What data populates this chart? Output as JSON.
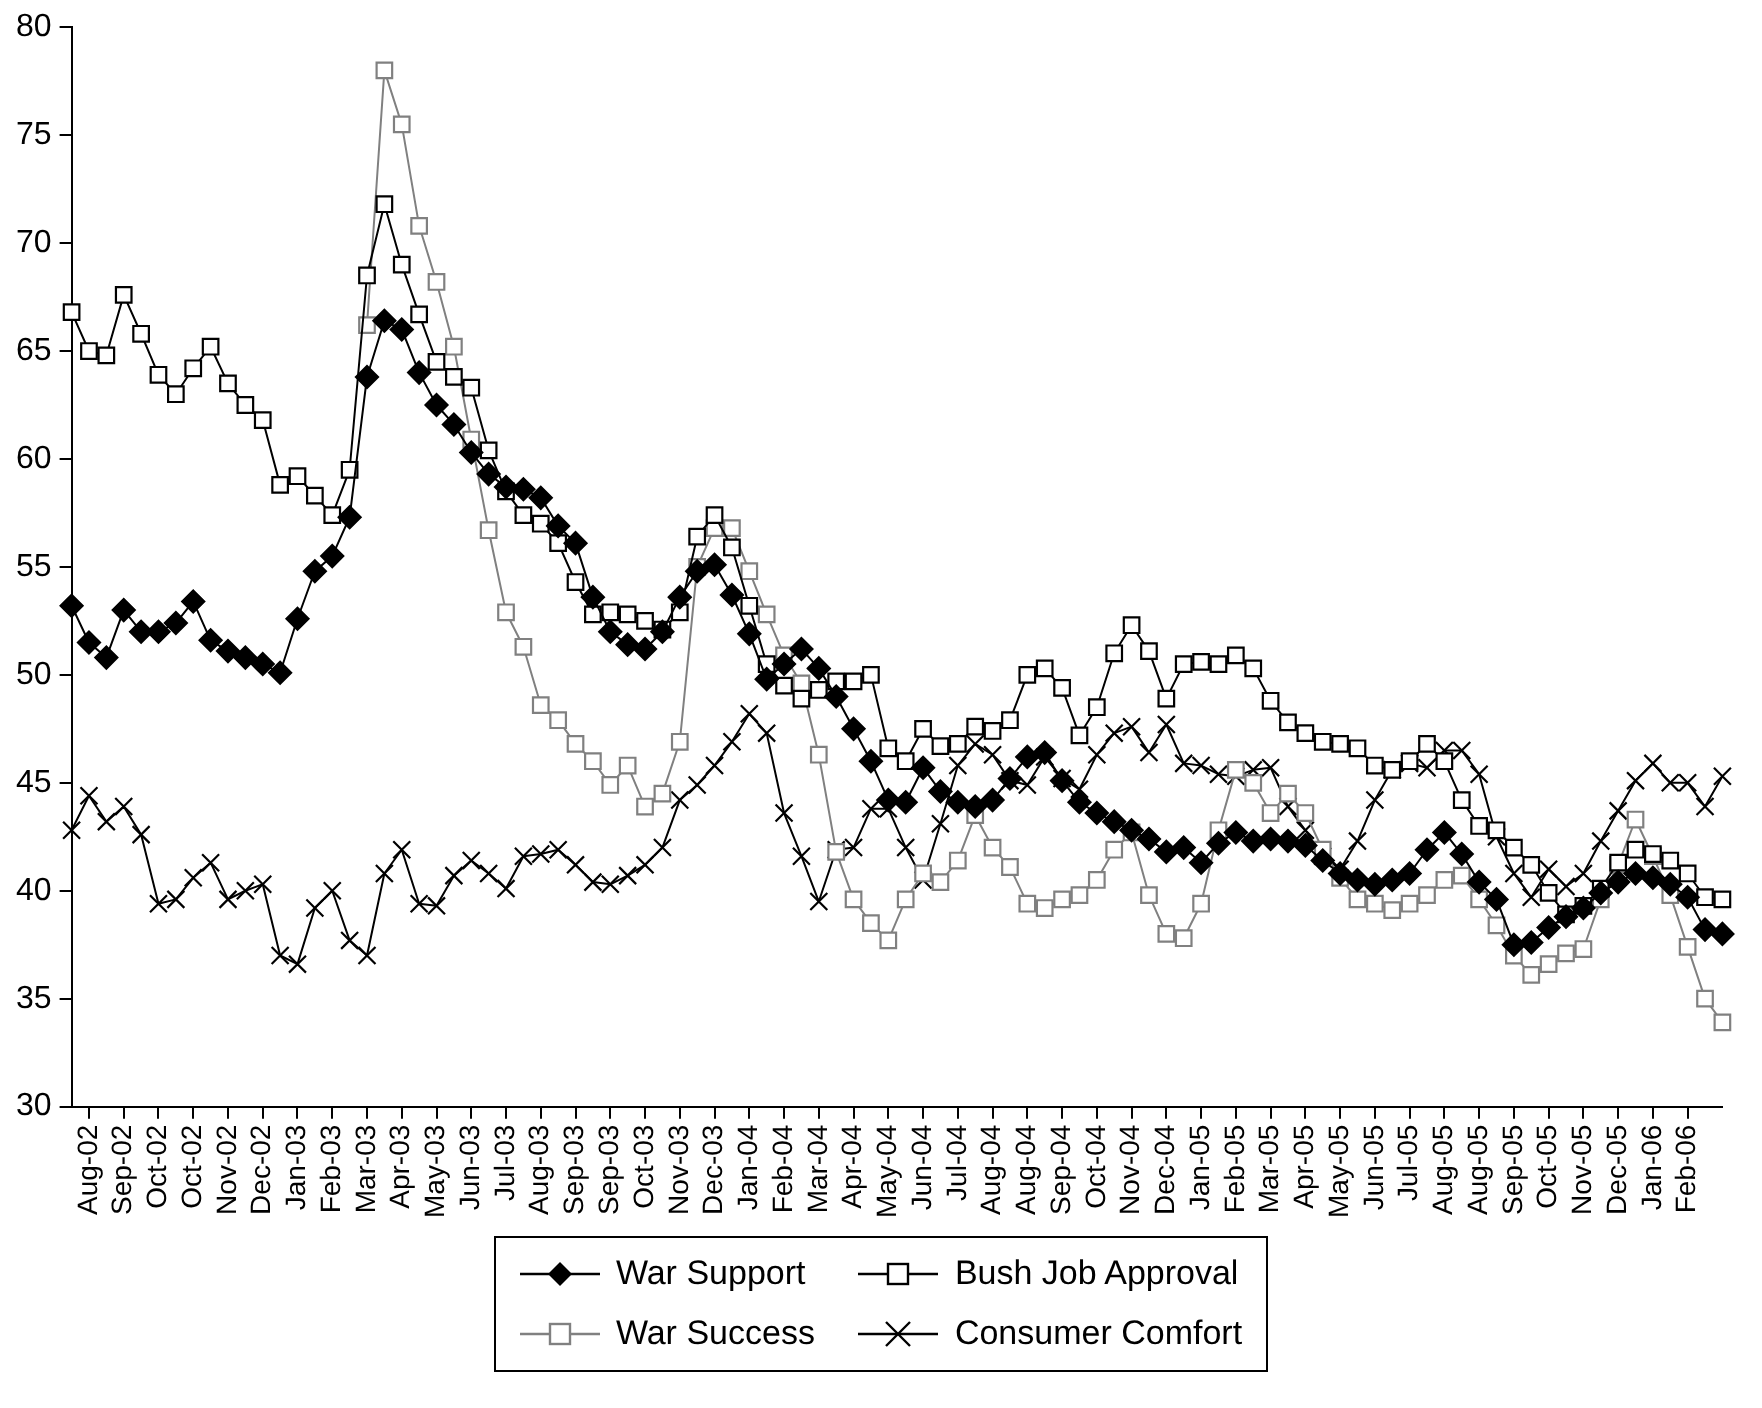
{
  "chart_data": {
    "type": "line",
    "ylim": [
      30,
      80
    ],
    "yticks": [
      30,
      35,
      40,
      45,
      50,
      55,
      60,
      65,
      70,
      75,
      80
    ],
    "categories": [
      null,
      "Aug-02",
      null,
      "Sep-02",
      null,
      "Oct-02",
      null,
      "Oct-02",
      null,
      "Nov-02",
      null,
      "Dec-02",
      null,
      "Jan-03",
      null,
      "Feb-03",
      null,
      "Mar-03",
      null,
      "Apr-03",
      null,
      "May-03",
      null,
      "Jun-03",
      null,
      "Jul-03",
      null,
      "Aug-03",
      null,
      "Sep-03",
      null,
      "Sep-03",
      null,
      "Oct-03",
      null,
      "Nov-03",
      null,
      "Dec-03",
      null,
      "Jan-04",
      null,
      "Feb-04",
      null,
      "Mar-04",
      null,
      "Apr-04",
      null,
      "May-04",
      null,
      "Jun-04",
      null,
      "Jul-04",
      null,
      "Aug-04",
      null,
      "Aug-04",
      null,
      "Sep-04",
      null,
      "Oct-04",
      null,
      "Nov-04",
      null,
      "Dec-04",
      null,
      "Jan-05",
      null,
      "Feb-05",
      null,
      "Mar-05",
      null,
      "Apr-05",
      null,
      "May-05",
      null,
      "Jun-05",
      null,
      "Jul-05",
      null,
      "Aug-05",
      null,
      "Aug-05",
      null,
      "Sep-05",
      null,
      "Oct-05",
      null,
      "Nov-05",
      null,
      "Dec-05",
      null,
      "Jan-06",
      null,
      "Feb-06",
      null,
      null
    ],
    "legend": "bottom",
    "line_style": "solid",
    "series": [
      {
        "name": "War Support",
        "color": "#000000",
        "marker": "diamond",
        "values": [
          53.2,
          51.5,
          50.8,
          53.0,
          52.0,
          52.0,
          52.4,
          53.4,
          51.6,
          51.1,
          50.8,
          50.5,
          50.1,
          52.6,
          54.8,
          55.5,
          57.3,
          63.8,
          66.4,
          66.0,
          64.0,
          62.5,
          61.6,
          60.3,
          59.3,
          58.7,
          58.6,
          58.2,
          56.9,
          56.1,
          53.6,
          52.0,
          51.4,
          51.2,
          52.0,
          53.6,
          54.8,
          55.1,
          53.7,
          51.9,
          49.8,
          50.5,
          51.2,
          50.3,
          49.0,
          47.5,
          46.0,
          44.2,
          44.1,
          45.7,
          44.6,
          44.1,
          43.9,
          44.2,
          45.2,
          46.2,
          46.4,
          45.1,
          44.1,
          43.6,
          43.2,
          42.8,
          42.4,
          41.8,
          42.0,
          41.3,
          42.2,
          42.7,
          42.3,
          42.4,
          42.3,
          42.1,
          41.4,
          40.8,
          40.5,
          40.3,
          40.5,
          40.8,
          41.9,
          42.7,
          41.7,
          40.4,
          39.6,
          37.5,
          37.6,
          38.3,
          38.8,
          39.2,
          39.9,
          40.4,
          40.8,
          40.6,
          40.3,
          39.7,
          38.2,
          38.0
        ]
      },
      {
        "name": "Bush Job Approval",
        "color": "#000000",
        "marker": "square",
        "values": [
          66.8,
          65.0,
          64.8,
          67.6,
          65.8,
          63.9,
          63.0,
          64.2,
          65.2,
          63.5,
          62.5,
          61.8,
          58.8,
          59.2,
          58.3,
          57.4,
          59.5,
          68.5,
          71.8,
          69.0,
          66.7,
          64.5,
          63.8,
          63.3,
          60.4,
          58.5,
          57.4,
          57.0,
          56.1,
          54.3,
          52.8,
          52.9,
          52.8,
          52.5,
          52.1,
          52.9,
          56.4,
          57.4,
          55.9,
          53.2,
          50.5,
          49.5,
          48.9,
          49.3,
          49.7,
          49.7,
          50.0,
          46.6,
          46.0,
          47.5,
          46.7,
          46.8,
          47.6,
          47.4,
          47.9,
          50.0,
          50.3,
          49.4,
          47.2,
          48.5,
          51.0,
          52.3,
          51.1,
          48.9,
          50.5,
          50.6,
          50.5,
          50.9,
          50.3,
          48.8,
          47.8,
          47.3,
          46.9,
          46.8,
          46.6,
          45.8,
          45.6,
          46.0,
          46.8,
          46.0,
          44.2,
          43.0,
          42.8,
          42.0,
          41.2,
          39.9,
          38.9,
          39.3,
          40.1,
          41.3,
          41.9,
          41.7,
          41.4,
          40.8,
          39.7,
          39.6
        ]
      },
      {
        "name": "War Success",
        "color": "#808080",
        "marker": "square",
        "values": [
          null,
          null,
          null,
          null,
          null,
          null,
          null,
          null,
          null,
          null,
          null,
          null,
          null,
          null,
          null,
          null,
          null,
          66.2,
          78.0,
          75.5,
          70.8,
          68.2,
          65.2,
          60.9,
          56.7,
          52.9,
          51.3,
          48.6,
          47.9,
          46.8,
          46.0,
          44.9,
          45.8,
          43.9,
          44.5,
          46.9,
          55.0,
          56.8,
          56.8,
          54.8,
          52.8,
          50.9,
          49.6,
          46.3,
          41.8,
          39.6,
          38.5,
          37.7,
          39.6,
          40.8,
          40.4,
          41.4,
          43.5,
          42.0,
          41.1,
          39.4,
          39.2,
          39.6,
          39.8,
          40.5,
          41.9,
          42.7,
          39.8,
          38.0,
          37.8,
          39.4,
          42.8,
          45.6,
          45.0,
          43.6,
          44.5,
          43.6,
          41.9,
          40.6,
          39.6,
          39.4,
          39.1,
          39.4,
          39.8,
          40.5,
          40.7,
          39.6,
          38.4,
          37.0,
          36.1,
          36.6,
          37.1,
          37.3,
          39.6,
          41.2,
          43.3,
          41.6,
          39.8,
          37.4,
          35.0,
          33.9
        ]
      },
      {
        "name": "Consumer Comfort",
        "color": "#000000",
        "marker": "cross",
        "values": [
          42.8,
          44.4,
          43.2,
          43.9,
          42.6,
          39.4,
          39.6,
          40.6,
          41.3,
          39.6,
          40.0,
          40.3,
          37.0,
          36.6,
          39.2,
          40.0,
          37.7,
          37.0,
          40.8,
          41.9,
          39.4,
          39.3,
          40.7,
          41.4,
          40.8,
          40.1,
          41.6,
          41.7,
          41.9,
          41.2,
          40.4,
          40.3,
          40.7,
          41.2,
          42.0,
          44.2,
          44.9,
          45.8,
          46.9,
          48.2,
          47.3,
          43.6,
          41.6,
          39.5,
          41.9,
          42.0,
          43.8,
          43.8,
          42.0,
          40.5,
          43.1,
          45.8,
          46.8,
          46.3,
          45.1,
          44.9,
          46.2,
          45.2,
          44.7,
          46.3,
          47.3,
          47.6,
          46.4,
          47.7,
          45.9,
          45.8,
          45.4,
          45.3,
          45.6,
          45.7,
          43.9,
          42.8,
          41.6,
          41.0,
          42.3,
          44.2,
          45.6,
          45.9,
          45.7,
          46.5,
          46.5,
          45.4,
          42.5,
          40.8,
          39.7,
          41.0,
          40.2,
          40.8,
          42.3,
          43.7,
          45.1,
          45.9,
          45.0,
          45.0,
          43.9,
          45.3
        ]
      }
    ]
  }
}
